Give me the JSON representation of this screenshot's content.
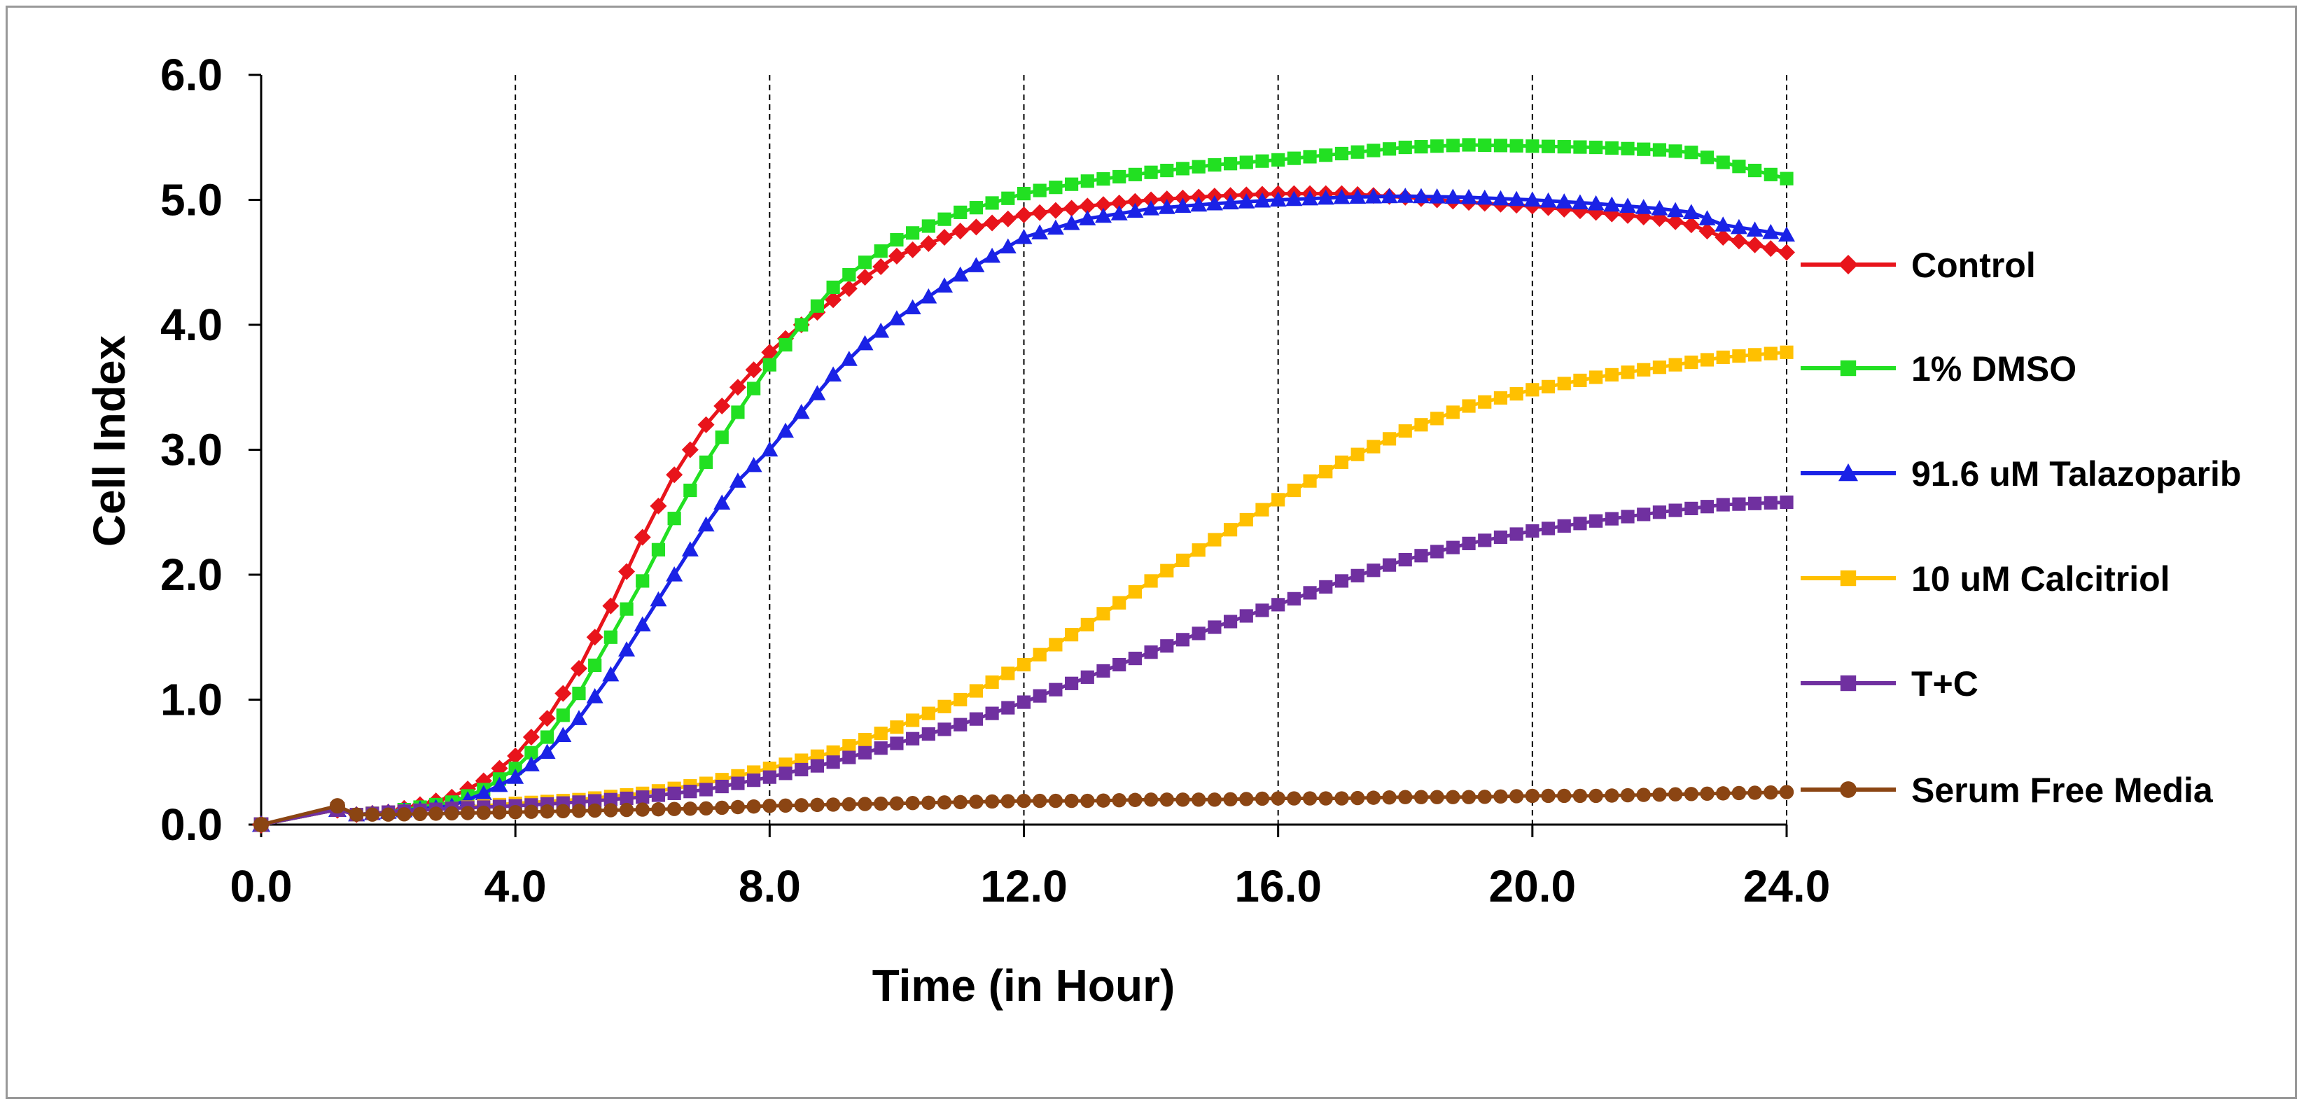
{
  "chart_data": {
    "type": "line",
    "title": "",
    "xlabel": "Time (in Hour)",
    "ylabel": "Cell Index",
    "xlim": [
      0,
      24
    ],
    "ylim": [
      0,
      6
    ],
    "x_ticks": [
      "0.0",
      "4.0",
      "8.0",
      "12.0",
      "16.0",
      "20.0",
      "24.0"
    ],
    "y_ticks": [
      "0.0",
      "1.0",
      "2.0",
      "3.0",
      "4.0",
      "5.0",
      "6.0"
    ],
    "grid": "vertical dashed at 4, 8, 12, 16, 20, 24",
    "legend_position": "right",
    "series": [
      {
        "name": "Control",
        "color": "#e8141b",
        "marker": "diamond",
        "points": [
          [
            0,
            0
          ],
          [
            1.2,
            0.12
          ],
          [
            1.5,
            0.08
          ],
          [
            2,
            0.1
          ],
          [
            3,
            0.22
          ],
          [
            3.5,
            0.35
          ],
          [
            4,
            0.55
          ],
          [
            4.5,
            0.85
          ],
          [
            5,
            1.25
          ],
          [
            5.5,
            1.75
          ],
          [
            6,
            2.3
          ],
          [
            6.5,
            2.8
          ],
          [
            7,
            3.2
          ],
          [
            7.5,
            3.5
          ],
          [
            8,
            3.78
          ],
          [
            8.5,
            4.0
          ],
          [
            9,
            4.2
          ],
          [
            9.5,
            4.38
          ],
          [
            10,
            4.55
          ],
          [
            11,
            4.75
          ],
          [
            12,
            4.88
          ],
          [
            13,
            4.95
          ],
          [
            14,
            5.0
          ],
          [
            15,
            5.03
          ],
          [
            16,
            5.05
          ],
          [
            17,
            5.05
          ],
          [
            18,
            5.02
          ],
          [
            19,
            4.98
          ],
          [
            20,
            4.95
          ],
          [
            21,
            4.9
          ],
          [
            22,
            4.85
          ],
          [
            22.5,
            4.8
          ],
          [
            23,
            4.7
          ],
          [
            24,
            4.58
          ]
        ]
      },
      {
        "name": "1% DMSO",
        "color": "#22e022",
        "marker": "square",
        "points": [
          [
            0,
            0
          ],
          [
            1.2,
            0.12
          ],
          [
            1.5,
            0.08
          ],
          [
            2,
            0.1
          ],
          [
            3,
            0.18
          ],
          [
            3.5,
            0.28
          ],
          [
            4,
            0.45
          ],
          [
            4.5,
            0.7
          ],
          [
            5,
            1.05
          ],
          [
            5.5,
            1.5
          ],
          [
            6,
            1.95
          ],
          [
            6.5,
            2.45
          ],
          [
            7,
            2.9
          ],
          [
            7.5,
            3.3
          ],
          [
            8,
            3.68
          ],
          [
            8.5,
            4.0
          ],
          [
            9,
            4.3
          ],
          [
            9.5,
            4.5
          ],
          [
            10,
            4.68
          ],
          [
            11,
            4.9
          ],
          [
            12,
            5.05
          ],
          [
            13,
            5.15
          ],
          [
            14,
            5.22
          ],
          [
            15,
            5.28
          ],
          [
            16,
            5.32
          ],
          [
            17,
            5.37
          ],
          [
            18,
            5.42
          ],
          [
            19,
            5.44
          ],
          [
            20,
            5.43
          ],
          [
            21,
            5.42
          ],
          [
            22,
            5.4
          ],
          [
            22.5,
            5.38
          ],
          [
            23,
            5.3
          ],
          [
            24,
            5.17
          ]
        ]
      },
      {
        "name": "91.6 uM Talazoparib",
        "color": "#1a22e6",
        "marker": "triangle",
        "points": [
          [
            0,
            0
          ],
          [
            1.2,
            0.12
          ],
          [
            1.5,
            0.08
          ],
          [
            2,
            0.1
          ],
          [
            3,
            0.15
          ],
          [
            3.5,
            0.25
          ],
          [
            4,
            0.38
          ],
          [
            4.5,
            0.58
          ],
          [
            5,
            0.85
          ],
          [
            5.5,
            1.2
          ],
          [
            6,
            1.6
          ],
          [
            6.5,
            2.0
          ],
          [
            7,
            2.4
          ],
          [
            7.5,
            2.75
          ],
          [
            8,
            3.0
          ],
          [
            8.5,
            3.3
          ],
          [
            9,
            3.6
          ],
          [
            9.5,
            3.85
          ],
          [
            10,
            4.05
          ],
          [
            11,
            4.4
          ],
          [
            12,
            4.7
          ],
          [
            13,
            4.85
          ],
          [
            14,
            4.93
          ],
          [
            15,
            4.97
          ],
          [
            16,
            5.0
          ],
          [
            17,
            5.02
          ],
          [
            18,
            5.03
          ],
          [
            19,
            5.02
          ],
          [
            20,
            5.0
          ],
          [
            21,
            4.97
          ],
          [
            22,
            4.93
          ],
          [
            22.5,
            4.9
          ],
          [
            23,
            4.8
          ],
          [
            24,
            4.72
          ]
        ]
      },
      {
        "name": "10 uM Calcitriol",
        "color": "#ffc000",
        "marker": "square",
        "points": [
          [
            0,
            0
          ],
          [
            1.2,
            0.12
          ],
          [
            1.5,
            0.08
          ],
          [
            2,
            0.1
          ],
          [
            3,
            0.13
          ],
          [
            4,
            0.17
          ],
          [
            5,
            0.2
          ],
          [
            6,
            0.25
          ],
          [
            7,
            0.33
          ],
          [
            8,
            0.45
          ],
          [
            9,
            0.58
          ],
          [
            10,
            0.78
          ],
          [
            11,
            1.0
          ],
          [
            12,
            1.28
          ],
          [
            13,
            1.6
          ],
          [
            14,
            1.95
          ],
          [
            15,
            2.28
          ],
          [
            16,
            2.6
          ],
          [
            17,
            2.9
          ],
          [
            18,
            3.15
          ],
          [
            19,
            3.35
          ],
          [
            20,
            3.48
          ],
          [
            21,
            3.58
          ],
          [
            22,
            3.66
          ],
          [
            23,
            3.74
          ],
          [
            24,
            3.78
          ]
        ]
      },
      {
        "name": "T+C",
        "color": "#7030a0",
        "marker": "square",
        "points": [
          [
            0,
            0
          ],
          [
            1.2,
            0.12
          ],
          [
            1.5,
            0.08
          ],
          [
            2,
            0.1
          ],
          [
            3,
            0.13
          ],
          [
            4,
            0.15
          ],
          [
            5,
            0.18
          ],
          [
            6,
            0.22
          ],
          [
            7,
            0.28
          ],
          [
            8,
            0.38
          ],
          [
            9,
            0.5
          ],
          [
            10,
            0.65
          ],
          [
            11,
            0.8
          ],
          [
            12,
            0.98
          ],
          [
            13,
            1.18
          ],
          [
            14,
            1.38
          ],
          [
            15,
            1.58
          ],
          [
            16,
            1.76
          ],
          [
            17,
            1.95
          ],
          [
            18,
            2.12
          ],
          [
            19,
            2.25
          ],
          [
            20,
            2.35
          ],
          [
            21,
            2.43
          ],
          [
            22,
            2.5
          ],
          [
            23,
            2.56
          ],
          [
            24,
            2.58
          ]
        ]
      },
      {
        "name": "Serum Free Media",
        "color": "#8b4513",
        "marker": "circle",
        "points": [
          [
            0,
            0
          ],
          [
            1.2,
            0.15
          ],
          [
            1.5,
            0.08
          ],
          [
            2,
            0.08
          ],
          [
            3,
            0.09
          ],
          [
            4,
            0.1
          ],
          [
            5,
            0.11
          ],
          [
            6,
            0.12
          ],
          [
            7,
            0.13
          ],
          [
            8,
            0.15
          ],
          [
            9,
            0.16
          ],
          [
            10,
            0.17
          ],
          [
            11,
            0.18
          ],
          [
            12,
            0.19
          ],
          [
            13,
            0.19
          ],
          [
            14,
            0.2
          ],
          [
            15,
            0.2
          ],
          [
            16,
            0.21
          ],
          [
            17,
            0.21
          ],
          [
            18,
            0.22
          ],
          [
            19,
            0.22
          ],
          [
            20,
            0.23
          ],
          [
            21,
            0.23
          ],
          [
            22,
            0.24
          ],
          [
            23,
            0.25
          ],
          [
            24,
            0.26
          ]
        ]
      }
    ]
  }
}
